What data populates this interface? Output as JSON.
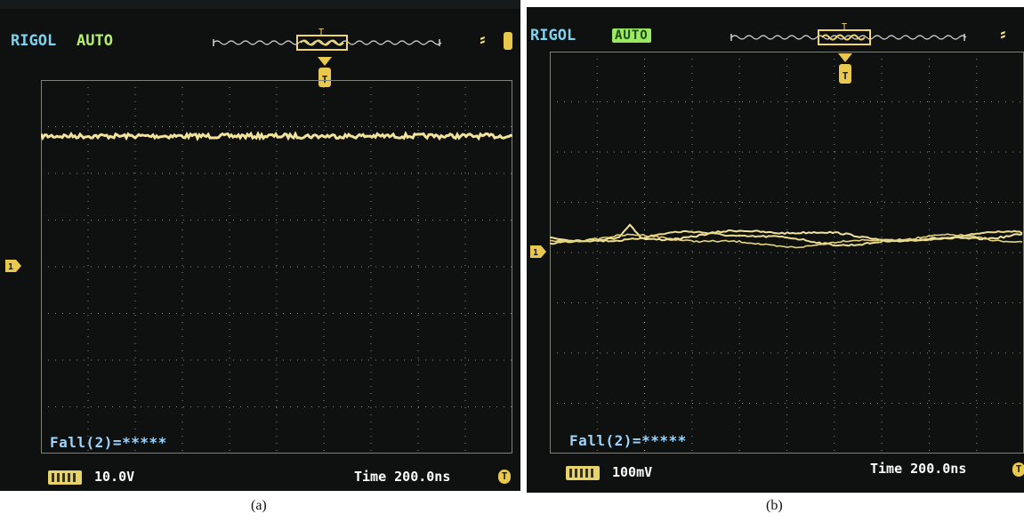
{
  "panels": [
    {
      "id": "a",
      "brand": "RIGOL",
      "mode": "AUTO",
      "status": "Fall(2)=*****",
      "channel_scale": "10.0V",
      "time_label": "Time 200.0ns",
      "trace_color": "#f2e39a",
      "caption": "(a)"
    },
    {
      "id": "b",
      "brand": "RIGOL",
      "mode": "AUTO",
      "status": "Fall(2)=*****",
      "channel_scale": "100mV",
      "time_label": "Time 200.0ns",
      "trace_color": "#f2e39a",
      "caption": "(b)"
    }
  ],
  "icons": {
    "trigger_edge": "falling-edge-icon",
    "trigger_marker": "trigger-position-marker-icon",
    "channel_marker": "ch1-ground-marker-icon",
    "time_end": "t-icon"
  },
  "colors": {
    "screen_bg": "#0f1111",
    "grid": "#8a8f86",
    "brand": "#7dd3f0",
    "mode": "#b6f06b",
    "status": "#9cd6ff",
    "trace": "#f2e39a",
    "marker": "#e8c94e"
  }
}
